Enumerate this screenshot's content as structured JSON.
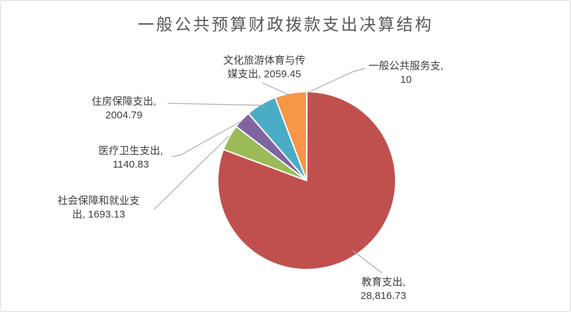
{
  "page": {
    "title": "一般公共预算财政拨款支出决算结构"
  },
  "chart_data": {
    "type": "pie",
    "title": "一般公共预算财政拨款支出决算结构",
    "legend": "none",
    "data_label_style": "category name + value, outside with gray leader lines",
    "direction": "clockwise",
    "start_angle_deg": 0,
    "slices": [
      {
        "key": "general-public-service",
        "name": "一般公共服务支",
        "value": 10,
        "color": "#4F81BD"
      },
      {
        "key": "education",
        "name": "教育支出",
        "value": 28816.73,
        "color": "#C0504D"
      },
      {
        "key": "social-security",
        "name": "社会保障和就业支出",
        "value": 1693.13,
        "color": "#9BBB59"
      },
      {
        "key": "medical-health",
        "name": "医疗卫生支出",
        "value": 1140.83,
        "color": "#8064A2"
      },
      {
        "key": "housing-security",
        "name": "住房保障支出",
        "value": 2004.79,
        "color": "#4BACC6"
      },
      {
        "key": "culture-media",
        "name": "文化旅游体育与传媒支出",
        "value": 2059.45,
        "color": "#F79646"
      }
    ]
  },
  "labels": {
    "culture": {
      "line1": "文化旅游体育与传",
      "line2": "媒支出, 2059.45"
    },
    "general": {
      "line1": "一般公共服务支,",
      "line2": "10"
    },
    "housing": {
      "line1": "住房保障支出,",
      "line2": "2004.79"
    },
    "medical": {
      "line1": "医疗卫生支出,",
      "line2": "1140.83"
    },
    "social": {
      "line1": "社会保障和就业支",
      "line2": "出, 1693.13"
    },
    "education": {
      "line1": "教育支出,",
      "line2": "28,816.73"
    }
  },
  "colors": {
    "title_text": "#595959",
    "label_text": "#3F3F3F",
    "leader_line": "#A9A9A9",
    "canvas_border": "#D9D9D9",
    "slice_border": "#FFFFFF"
  }
}
